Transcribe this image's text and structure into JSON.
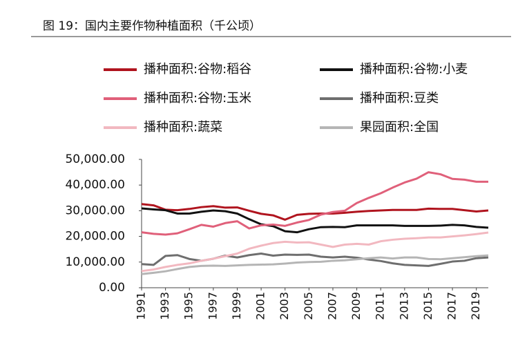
{
  "chart_data": {
    "type": "line",
    "title": "图 19：国内主要作物种植面积（千公顷）",
    "x": [
      1991,
      1992,
      1993,
      1994,
      1995,
      1996,
      1997,
      1998,
      1999,
      2000,
      2001,
      2002,
      2003,
      2004,
      2005,
      2006,
      2007,
      2008,
      2009,
      2010,
      2011,
      2012,
      2013,
      2014,
      2015,
      2016,
      2017,
      2018,
      2019,
      2020
    ],
    "xlim": [
      1991,
      2020
    ],
    "xticks": [
      1991,
      1993,
      1995,
      1997,
      1999,
      2001,
      2003,
      2005,
      2007,
      2009,
      2011,
      2013,
      2015,
      2017,
      2019
    ],
    "ylim": [
      0,
      50000
    ],
    "yticks": [
      {
        "value": 0,
        "label": "0.00"
      },
      {
        "value": 10000,
        "label": "10,000.00"
      },
      {
        "value": 20000,
        "label": "20,000.00"
      },
      {
        "value": 30000,
        "label": "30,000.00"
      },
      {
        "value": 40000,
        "label": "40,000.00"
      },
      {
        "value": 50000,
        "label": "50,000.00"
      }
    ],
    "series": [
      {
        "name": "播种面积:谷物:稻谷",
        "color": "#b0141e",
        "values": [
          32600,
          32100,
          30400,
          30200,
          30700,
          31400,
          31800,
          31200,
          31300,
          30000,
          28800,
          28200,
          26500,
          28400,
          28800,
          28900,
          28900,
          29200,
          29600,
          29900,
          30100,
          30300,
          30300,
          30300,
          30800,
          30700,
          30700,
          30200,
          29700,
          30100
        ]
      },
      {
        "name": "播种面积:谷物:小麦",
        "color": "#111111",
        "values": [
          30900,
          30500,
          30200,
          28900,
          28900,
          29600,
          30100,
          29800,
          28900,
          26700,
          24700,
          24000,
          22000,
          21600,
          22800,
          23600,
          23700,
          23600,
          24300,
          24300,
          24300,
          24300,
          24100,
          24100,
          24100,
          24200,
          24500,
          24300,
          23700,
          23400
        ]
      },
      {
        "name": "播种面积:谷物:玉米",
        "color": "#e0607a",
        "values": [
          21600,
          21000,
          20700,
          21200,
          22800,
          24500,
          23800,
          25200,
          25900,
          23100,
          24300,
          24600,
          24100,
          25400,
          26400,
          28500,
          29500,
          30000,
          33000,
          35000,
          36800,
          39000,
          41000,
          42500,
          45000,
          44200,
          42400,
          42100,
          41300,
          41300
        ]
      },
      {
        "name": "播种面积:豆类",
        "color": "#6e6e6e",
        "values": [
          9200,
          8900,
          12400,
          12700,
          11200,
          10500,
          11300,
          12500,
          11800,
          12700,
          13300,
          12500,
          12900,
          12800,
          12900,
          12100,
          11800,
          12100,
          11700,
          11000,
          10400,
          9500,
          8900,
          8700,
          8500,
          9300,
          10200,
          10500,
          11500,
          11800
        ]
      },
      {
        "name": "播种面积:蔬菜",
        "color": "#f2b8c0",
        "values": [
          6500,
          7100,
          8100,
          8900,
          9500,
          10500,
          11300,
          12300,
          13300,
          15200,
          16400,
          17400,
          17900,
          17600,
          17700,
          16800,
          15900,
          16800,
          17100,
          16800,
          18100,
          18700,
          19100,
          19300,
          19600,
          19600,
          20000,
          20400,
          20900,
          21500
        ]
      },
      {
        "name": "果园面积:全国",
        "color": "#b5b5b5",
        "values": [
          5300,
          5800,
          6400,
          7300,
          8100,
          8500,
          8600,
          8500,
          8700,
          8900,
          9000,
          9100,
          9400,
          9800,
          10000,
          10100,
          10500,
          10700,
          11100,
          11500,
          11800,
          11400,
          11800,
          11800,
          11200,
          11100,
          11500,
          11900,
          12300,
          12600
        ]
      }
    ]
  }
}
